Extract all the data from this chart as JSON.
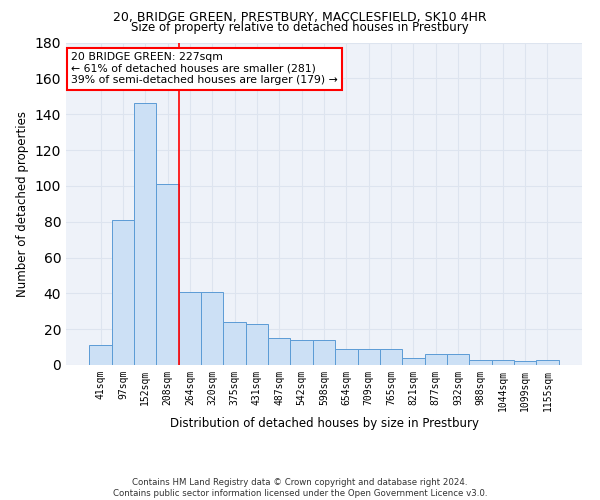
{
  "title": "20, BRIDGE GREEN, PRESTBURY, MACCLESFIELD, SK10 4HR",
  "subtitle": "Size of property relative to detached houses in Prestbury",
  "xlabel": "Distribution of detached houses by size in Prestbury",
  "ylabel": "Number of detached properties",
  "categories": [
    "41sqm",
    "97sqm",
    "152sqm",
    "208sqm",
    "264sqm",
    "320sqm",
    "375sqm",
    "431sqm",
    "487sqm",
    "542sqm",
    "598sqm",
    "654sqm",
    "709sqm",
    "765sqm",
    "821sqm",
    "877sqm",
    "932sqm",
    "988sqm",
    "1044sqm",
    "1099sqm",
    "1155sqm"
  ],
  "values": [
    11,
    81,
    146,
    101,
    41,
    41,
    24,
    23,
    15,
    14,
    14,
    9,
    9,
    9,
    4,
    6,
    6,
    3,
    3,
    2,
    3
  ],
  "bar_color": "#cce0f5",
  "bar_edge_color": "#5b9bd5",
  "grid_color": "#dde4ef",
  "background_color": "#eef2f9",
  "vline_x_index": 3.5,
  "vline_color": "red",
  "annotation_text": "20 BRIDGE GREEN: 227sqm\n← 61% of detached houses are smaller (281)\n39% of semi-detached houses are larger (179) →",
  "annotation_box_color": "white",
  "annotation_box_edge_color": "red",
  "ylim": [
    0,
    180
  ],
  "yticks": [
    0,
    20,
    40,
    60,
    80,
    100,
    120,
    140,
    160,
    180
  ],
  "footer": "Contains HM Land Registry data © Crown copyright and database right 2024.\nContains public sector information licensed under the Open Government Licence v3.0.",
  "title_fontsize": 9,
  "subtitle_fontsize": 8.5,
  "ylabel_fontsize": 8.5,
  "xlabel_fontsize": 8.5,
  "tick_fontsize": 7
}
